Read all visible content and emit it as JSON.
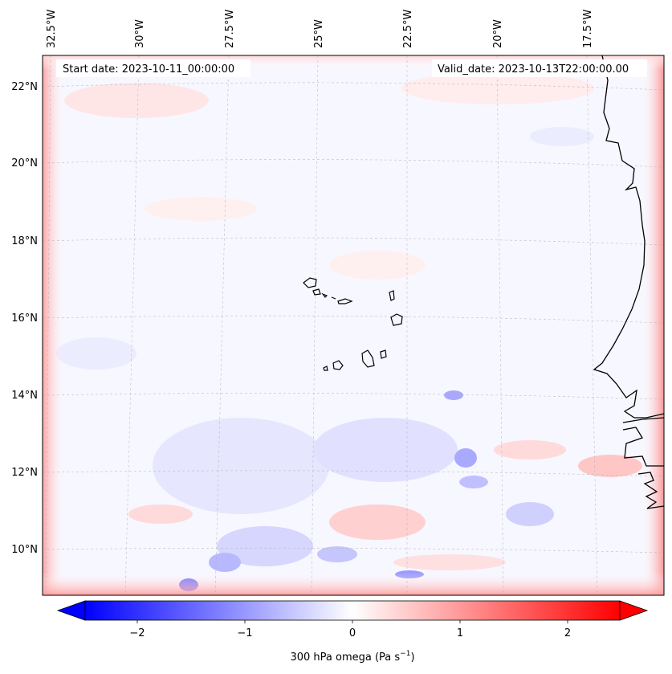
{
  "map": {
    "start_date": "Start date: 2023-10-11_00:00:00",
    "valid_date": "Valid_date: 2023-10-13T22:00:00.00",
    "lon_labels": [
      "32.5°W",
      "30°W",
      "27.5°W",
      "25°W",
      "22.5°W",
      "20°W",
      "17.5°W"
    ],
    "lat_labels": [
      "22°N",
      "20°N",
      "18°N",
      "16°N",
      "14°N",
      "12°N",
      "10°N"
    ],
    "features": [
      "coastline-africa",
      "cape-verde-islands"
    ],
    "colors": {
      "negative": "#0000ff",
      "neutral": "#ffffff",
      "positive": "#ff0000",
      "coastline": "#000000",
      "gridline": "#b0b0b0"
    }
  },
  "colorbar": {
    "ticks": [
      "−2",
      "−1",
      "0",
      "1",
      "2"
    ],
    "label": "300 hPa omega (Pa s",
    "label_sup": "−1",
    "label_end": ")"
  }
}
